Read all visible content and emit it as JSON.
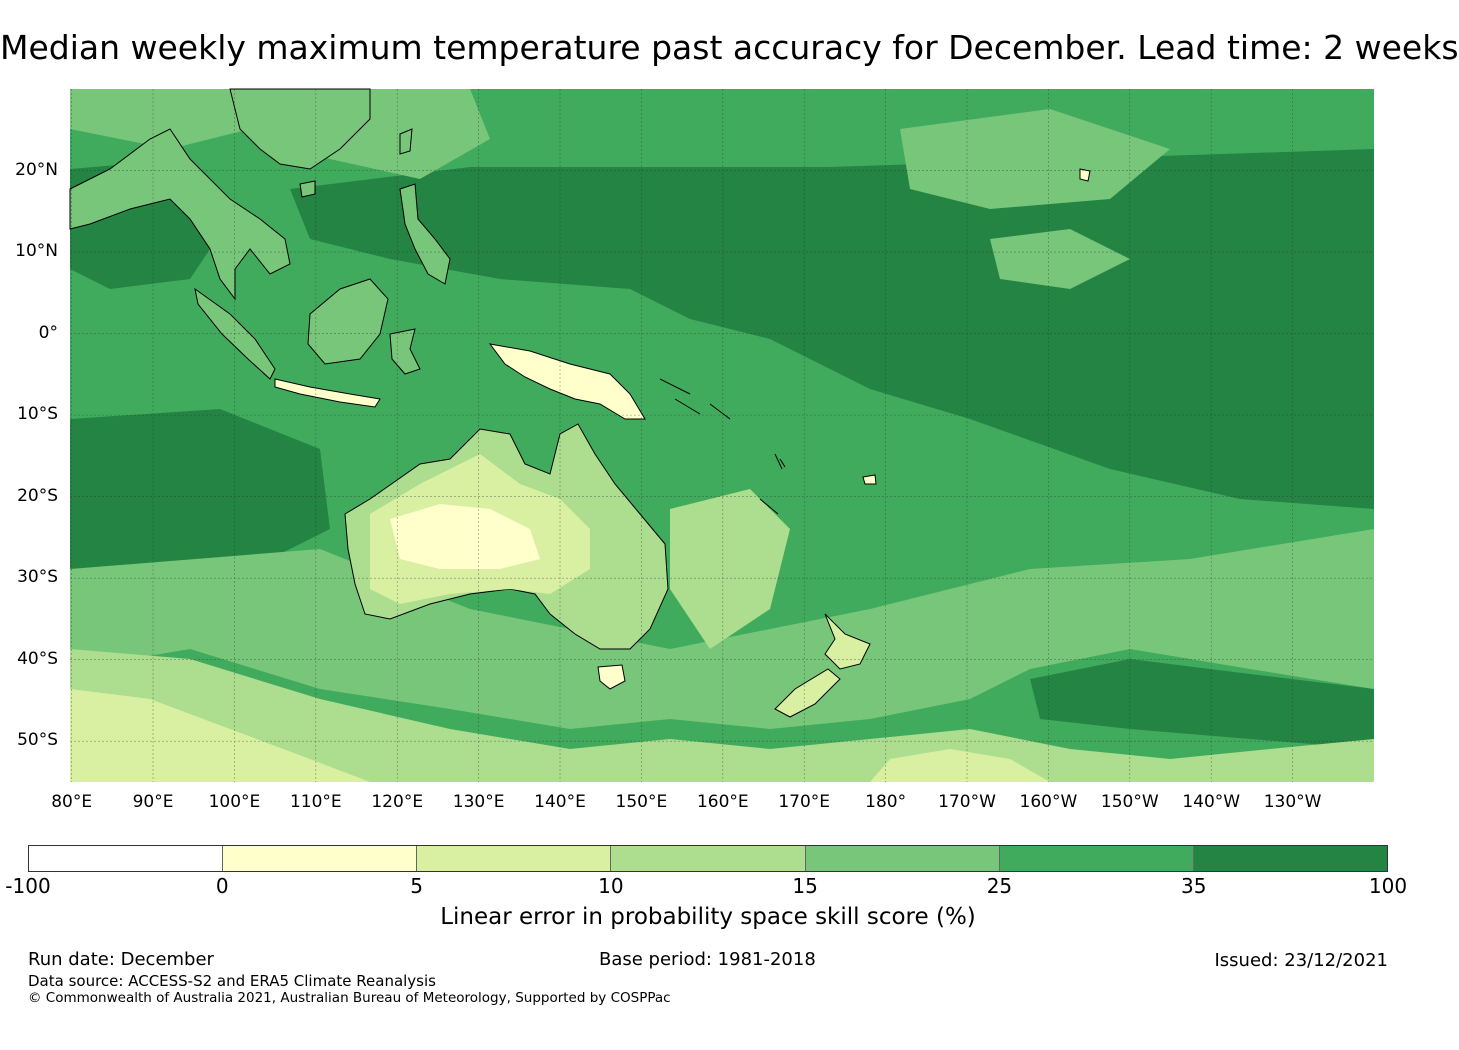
{
  "title": "Median weekly maximum temperature past accuracy for December. Lead time: 2 weeks",
  "map": {
    "lat_labels": [
      "20°N",
      "10°N",
      "0°",
      "10°S",
      "20°S",
      "30°S",
      "40°S",
      "50°S"
    ],
    "lon_labels": [
      "80°E",
      "90°E",
      "100°E",
      "110°E",
      "120°E",
      "130°E",
      "140°E",
      "150°E",
      "160°E",
      "170°E",
      "180°",
      "170°W",
      "160°W",
      "150°W",
      "140°W",
      "130°W"
    ],
    "lat_values": [
      20,
      10,
      0,
      -10,
      -20,
      -30,
      -40,
      -50
    ],
    "lon_values": [
      80,
      90,
      100,
      110,
      120,
      130,
      140,
      150,
      160,
      170,
      180,
      190,
      200,
      210,
      220,
      230
    ],
    "lon_range": [
      79.8,
      240
    ],
    "lat_range": [
      -55,
      30
    ]
  },
  "colorbar": {
    "ticks": [
      "-100",
      "0",
      "5",
      "10",
      "15",
      "25",
      "35",
      "100"
    ],
    "colors": [
      "#ffffff",
      "#ffffcc",
      "#d9f0a3",
      "#addd8e",
      "#78c679",
      "#41ab5d",
      "#238443"
    ],
    "label": "Linear error in probability space skill score (%)"
  },
  "footer": {
    "run_date": "Run date: December",
    "base_period": "Base period: 1981-2018",
    "issued": "Issued: 23/12/2021",
    "data_source": "Data source: ACCESS-S2 and ERA5 Climate Reanalysis",
    "copyright": "© Commonwealth of Australia 2021, Australian Bureau of Meteorology, Supported by COSPPac"
  }
}
